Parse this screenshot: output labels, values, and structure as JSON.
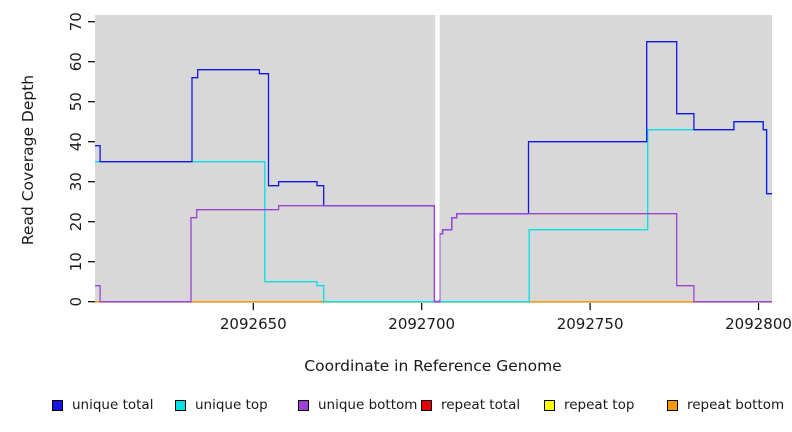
{
  "chart_data": {
    "type": "line",
    "subtype": "step",
    "title": "",
    "xlabel": "Coordinate in Reference Genome",
    "ylabel": "Read Coverage Depth",
    "xlim": [
      2092603,
      2092804
    ],
    "ylim": [
      0,
      70
    ],
    "xticks": [
      2092650,
      2092700,
      2092750,
      2092800
    ],
    "yticks": [
      0,
      10,
      20,
      30,
      40,
      50,
      60,
      70
    ],
    "grid": false,
    "plot_bg_color": "#d8d8d8",
    "page_bg_color": "#ffffff",
    "legend_position": "bottom",
    "gap_region": {
      "x_from": 2092704.0,
      "x_to": 2092705.3
    },
    "series": [
      {
        "name": "unique total",
        "color": "#1515e6",
        "steps": [
          [
            2092603.0,
            39
          ],
          [
            2092604.5,
            35
          ],
          [
            2092631.8,
            56
          ],
          [
            2092633.5,
            58
          ],
          [
            2092651.8,
            57
          ],
          [
            2092654.5,
            29
          ],
          [
            2092657.5,
            30
          ],
          [
            2092668.9,
            29
          ],
          [
            2092670.9,
            24
          ],
          [
            2092703.8,
            0
          ],
          [
            2092705.3,
            17
          ],
          [
            2092706.2,
            18
          ],
          [
            2092708.9,
            21
          ],
          [
            2092710.4,
            22
          ],
          [
            2092731.7,
            40
          ],
          [
            2092766.8,
            65
          ],
          [
            2092775.7,
            47
          ],
          [
            2092780.8,
            43
          ],
          [
            2092792.7,
            45
          ],
          [
            2092801.4,
            43
          ],
          [
            2092802.4,
            27
          ]
        ]
      },
      {
        "name": "unique top",
        "color": "#00e0e6",
        "steps": [
          [
            2092603.0,
            35
          ],
          [
            2092653.4,
            5
          ],
          [
            2092668.9,
            4
          ],
          [
            2092670.9,
            0
          ],
          [
            2092731.9,
            18
          ],
          [
            2092767.1,
            43
          ],
          [
            2092792.7,
            45
          ],
          [
            2092801.4,
            43
          ],
          [
            2092802.4,
            27
          ]
        ]
      },
      {
        "name": "unique bottom",
        "color": "#9c42d4",
        "steps": [
          [
            2092603.0,
            4
          ],
          [
            2092604.5,
            0
          ],
          [
            2092631.5,
            21
          ],
          [
            2092633.2,
            23
          ],
          [
            2092657.5,
            24
          ],
          [
            2092703.8,
            0
          ],
          [
            2092705.3,
            17
          ],
          [
            2092706.2,
            18
          ],
          [
            2092708.9,
            21
          ],
          [
            2092710.4,
            22
          ],
          [
            2092775.7,
            4
          ],
          [
            2092780.8,
            0
          ]
        ]
      },
      {
        "name": "repeat total",
        "color": "#e60000",
        "steps": [
          [
            2092603.0,
            0
          ]
        ]
      },
      {
        "name": "repeat top",
        "color": "#ffff00",
        "steps": [
          [
            2092603.0,
            0
          ]
        ]
      },
      {
        "name": "repeat bottom",
        "color": "#ff9900",
        "steps": [
          [
            2092603.0,
            0
          ]
        ]
      }
    ],
    "draw_order": [
      "repeat total",
      "repeat top",
      "repeat bottom",
      "unique top",
      "unique total",
      "unique bottom"
    ]
  }
}
